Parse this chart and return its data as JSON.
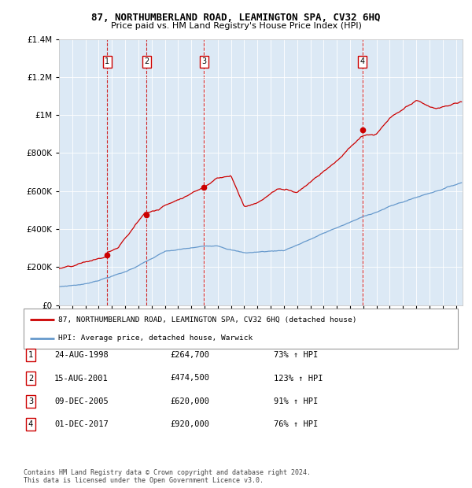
{
  "title": "87, NORTHUMBERLAND ROAD, LEAMINGTON SPA, CV32 6HQ",
  "subtitle": "Price paid vs. HM Land Registry's House Price Index (HPI)",
  "plot_background": "#dce9f5",
  "transactions": [
    {
      "num": 1,
      "date": "24-AUG-1998",
      "year": 1998.646,
      "price": 264700,
      "pct": "73%"
    },
    {
      "num": 2,
      "date": "15-AUG-2001",
      "year": 2001.623,
      "price": 474500,
      "pct": "123%"
    },
    {
      "num": 3,
      "date": "09-DEC-2005",
      "year": 2005.94,
      "price": 620000,
      "pct": "91%"
    },
    {
      "num": 4,
      "date": "01-DEC-2017",
      "year": 2017.92,
      "price": 920000,
      "pct": "76%"
    }
  ],
  "legend_property_label": "87, NORTHUMBERLAND ROAD, LEAMINGTON SPA, CV32 6HQ (detached house)",
  "legend_hpi_label": "HPI: Average price, detached house, Warwick",
  "footer": "Contains HM Land Registry data © Crown copyright and database right 2024.\nThis data is licensed under the Open Government Licence v3.0.",
  "property_color": "#cc0000",
  "hpi_color": "#6699cc",
  "vline_color": "#cc0000",
  "ylim_max": 1400000,
  "xlim_start": 1995.0,
  "xlim_end": 2025.5
}
